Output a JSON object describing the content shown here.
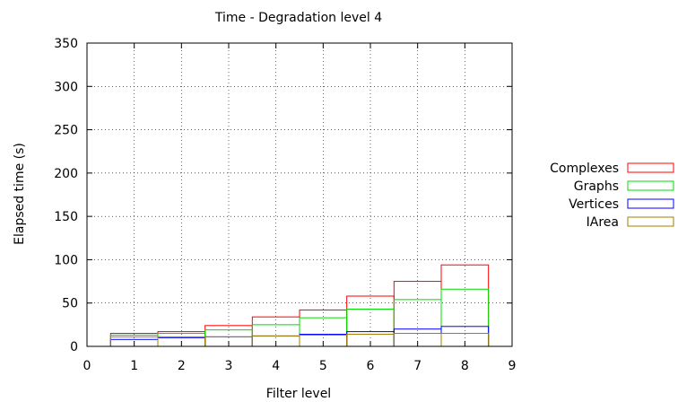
{
  "chart_data": {
    "type": "bar",
    "title": "Time - Degradation level 4",
    "xlabel": "Filter level",
    "ylabel": "Elapsed time (s)",
    "xlim": [
      0,
      9
    ],
    "ylim": [
      0,
      350
    ],
    "xticks": [
      "0",
      "1",
      "2",
      "3",
      "4",
      "5",
      "6",
      "7",
      "8",
      "9"
    ],
    "yticks": [
      "0",
      "50",
      "100",
      "150",
      "200",
      "250",
      "300",
      "350"
    ],
    "grid": true,
    "legend_position": "right",
    "categories": [
      1,
      2,
      3,
      4,
      5,
      6,
      7,
      8
    ],
    "series": [
      {
        "name": "Complexes",
        "color": "#ff0000",
        "values": [
          15,
          17,
          24,
          34,
          42,
          58,
          75,
          94
        ]
      },
      {
        "name": "Graphs",
        "color": "#00dd00",
        "values": [
          13,
          15,
          19,
          25,
          33,
          43,
          54,
          66
        ]
      },
      {
        "name": "Vertices",
        "color": "#0000ff",
        "values": [
          8,
          10,
          11,
          12,
          14,
          17,
          20,
          23
        ]
      },
      {
        "name": "IArea",
        "color": "#a08000",
        "values": [
          11,
          11,
          11,
          12,
          13,
          14,
          15,
          15
        ]
      }
    ]
  }
}
